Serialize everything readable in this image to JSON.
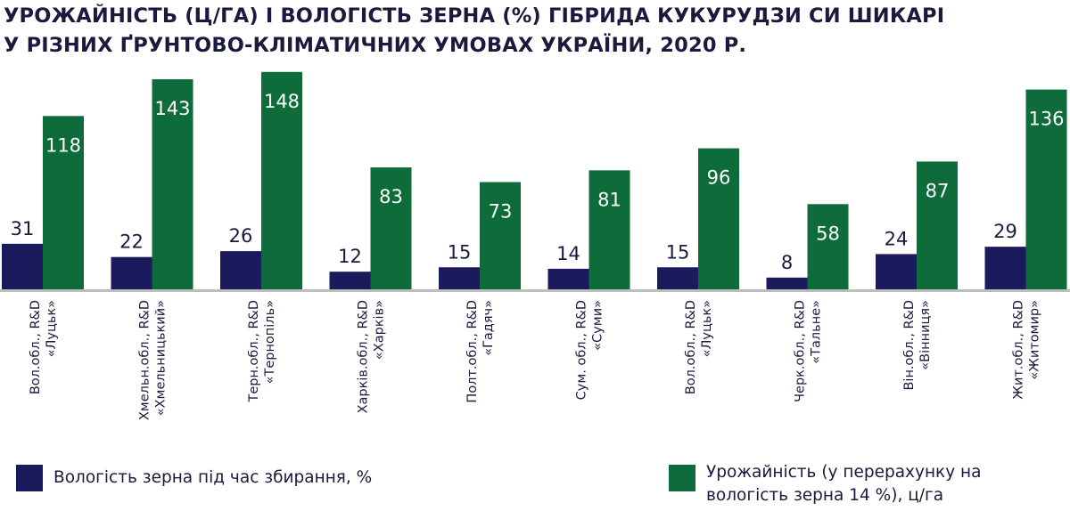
{
  "title": {
    "line1": "УРОЖАЙНІСТЬ (Ц/ГА) І ВОЛОГІСТЬ ЗЕРНА (%) ГІБРИДА КУКУРУДЗИ СИ ШИКАРІ",
    "line2": "У РІЗНИХ ҐРУНТОВО-КЛІМАТИЧНИХ УМОВАХ УКРАЇНИ, 2020 Р."
  },
  "colors": {
    "moisture": "#1b1a5c",
    "yield": "#0e6b3a",
    "axis": "#bdbdbd",
    "text": "#1a1a3e"
  },
  "chart_data": {
    "type": "bar",
    "title": "УРОЖАЙНІСТЬ (Ц/ГА) І ВОЛОГІСТЬ ЗЕРНА (%) ГІБРИДА КУКУРУДЗИ СИ ШИКАРІ У РІЗНИХ ҐРУНТОВО-КЛІМАТИЧНИХ УМОВАХ УКРАЇНИ, 2020 Р.",
    "xlabel": "",
    "ylabel": "",
    "grid": false,
    "legend_position": "bottom",
    "ylim": [
      0,
      150
    ],
    "categories": [
      [
        "Вол.обл., R&D",
        "«Луцьк»"
      ],
      [
        "Хмельн.обл., R&D",
        "«Хмельницький»"
      ],
      [
        "Терн.обл., R&D",
        "«Тернопіль»"
      ],
      [
        "Харків.обл., R&D",
        "«Харків»"
      ],
      [
        "Полт.обл., R&D",
        "«Гадяч»"
      ],
      [
        "Сум. обл., R&D",
        "«Суми»"
      ],
      [
        "Вол.обл., R&D",
        "«Луцьк»"
      ],
      [
        "Черк.обл., R&D",
        "«Тальне»"
      ],
      [
        "Він.обл., R&D",
        "«Вінниця»"
      ],
      [
        "Жит.обл., R&D",
        "«Житомир»"
      ]
    ],
    "series": [
      {
        "name": "Вологість зерна під час збирання, %",
        "color": "#1b1a5c",
        "values": [
          31,
          22,
          26,
          12,
          15,
          14,
          15,
          8,
          24,
          29
        ]
      },
      {
        "name": "Урожайність (у перерахунку на вологість зерна 14 %), ц/га",
        "color": "#0e6b3a",
        "values": [
          118,
          143,
          148,
          83,
          73,
          81,
          96,
          58,
          87,
          136
        ]
      }
    ]
  },
  "legend": {
    "moisture": "Вологість зерна під час збирання, %",
    "yield_line1": "Урожайність (у перерахунку на",
    "yield_line2": "вологість зерна 14 %), ц/га"
  }
}
